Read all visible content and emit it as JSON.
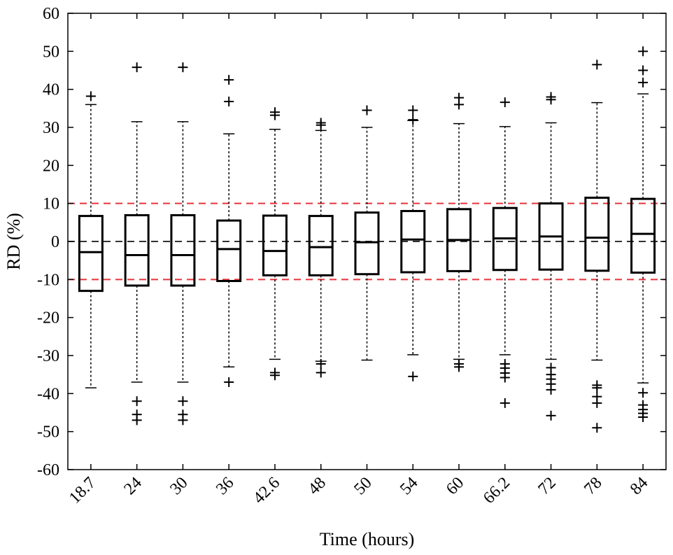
{
  "chart_data": {
    "type": "box",
    "title": "",
    "xlabel": "Time (hours)",
    "ylabel": "RD (%)",
    "ylim": [
      -60,
      60
    ],
    "yticks": [
      -60,
      -50,
      -40,
      -30,
      -20,
      -10,
      0,
      10,
      20,
      30,
      40,
      50,
      60
    ],
    "grid": false,
    "categories": [
      "18.7",
      "24",
      "30",
      "36",
      "42.6",
      "48",
      "50",
      "54",
      "60",
      "66.2",
      "72",
      "78",
      "84"
    ],
    "reference_lines": [
      {
        "y": 10,
        "color": "#e8333b",
        "style": "dashed"
      },
      {
        "y": 0,
        "color": "#333333",
        "style": "dashed"
      },
      {
        "y": -10,
        "color": "#e8333b",
        "style": "dashed"
      }
    ],
    "boxes": [
      {
        "q1": -13.0,
        "median": -2.8,
        "q3": 6.7,
        "whisker_low": -38.5,
        "whisker_high": 36.0,
        "outliers": [
          38.2
        ]
      },
      {
        "q1": -11.6,
        "median": -3.6,
        "q3": 6.9,
        "whisker_low": -37.0,
        "whisker_high": 31.5,
        "outliers": [
          45.8,
          -42.0,
          -45.5,
          -47.0
        ]
      },
      {
        "q1": -11.6,
        "median": -3.6,
        "q3": 6.9,
        "whisker_low": -37.0,
        "whisker_high": 31.5,
        "outliers": [
          45.8,
          -42.0,
          -45.5,
          -47.0
        ]
      },
      {
        "q1": -10.4,
        "median": -2.0,
        "q3": 5.5,
        "whisker_low": -33.0,
        "whisker_high": 28.3,
        "outliers": [
          42.5,
          36.8,
          -37.0
        ]
      },
      {
        "q1": -8.9,
        "median": -2.5,
        "q3": 6.8,
        "whisker_low": -31.0,
        "whisker_high": 29.5,
        "outliers": [
          34.0,
          33.2,
          -34.5,
          -35.2
        ]
      },
      {
        "q1": -8.9,
        "median": -1.5,
        "q3": 6.7,
        "whisker_low": -31.5,
        "whisker_high": 29.2,
        "outliers": [
          31.2,
          30.6,
          -32.2,
          -34.5
        ]
      },
      {
        "q1": -8.6,
        "median": -0.2,
        "q3": 7.6,
        "whisker_low": -31.2,
        "whisker_high": 30.0,
        "outliers": [
          34.5
        ]
      },
      {
        "q1": -8.1,
        "median": 0.5,
        "q3": 8.0,
        "whisker_low": -29.8,
        "whisker_high": 31.8,
        "outliers": [
          34.5,
          32.0,
          -35.5
        ]
      },
      {
        "q1": -7.8,
        "median": 0.4,
        "q3": 8.5,
        "whisker_low": -31.0,
        "whisker_high": 31.0,
        "outliers": [
          37.8,
          36.0,
          -32.2,
          -33.0
        ]
      },
      {
        "q1": -7.5,
        "median": 0.8,
        "q3": 8.8,
        "whisker_low": -29.8,
        "whisker_high": 30.2,
        "outliers": [
          36.6,
          -32.2,
          -33.3,
          -34.6,
          -35.8,
          -42.5
        ]
      },
      {
        "q1": -7.4,
        "median": 1.3,
        "q3": 10.0,
        "whisker_low": -31.0,
        "whisker_high": 31.2,
        "outliers": [
          38.0,
          37.3,
          -33.2,
          -35.0,
          -36.2,
          -37.5,
          -39.0,
          -45.8
        ]
      },
      {
        "q1": -7.7,
        "median": 1.0,
        "q3": 11.5,
        "whisker_low": -31.2,
        "whisker_high": 36.5,
        "outliers": [
          46.5,
          -37.8,
          -38.5,
          -40.8,
          -42.5,
          -49.0
        ]
      },
      {
        "q1": -8.2,
        "median": 2.0,
        "q3": 11.2,
        "whisker_low": -37.2,
        "whisker_high": 38.8,
        "outliers": [
          50.0,
          45.0,
          41.8,
          -39.8,
          -43.0,
          -44.2,
          -45.2,
          -46.2
        ]
      }
    ]
  }
}
